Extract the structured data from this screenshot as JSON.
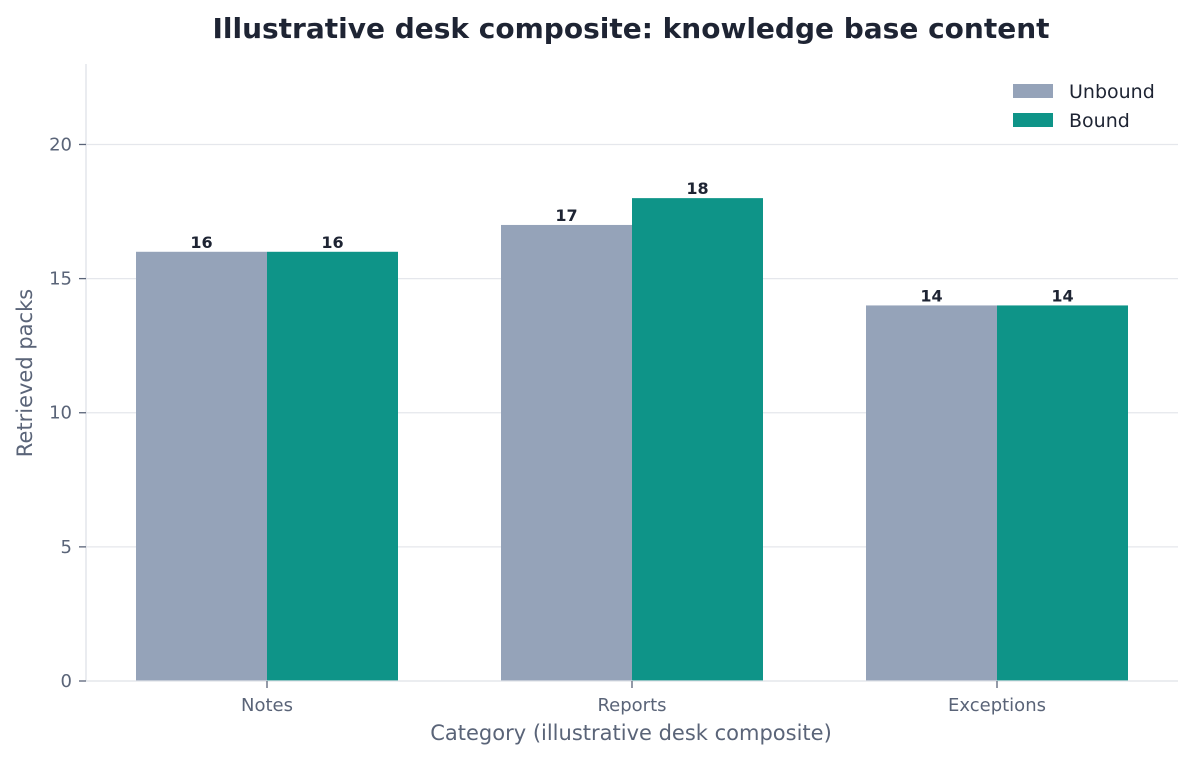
{
  "chart_data": {
    "type": "bar",
    "title": "Illustrative desk composite: knowledge base content",
    "xlabel": "Category (illustrative desk composite)",
    "ylabel": "Retrieved packs",
    "categories": [
      "Notes",
      "Reports",
      "Exceptions"
    ],
    "series": [
      {
        "name": "Unbound",
        "color": "#95a3b9",
        "values": [
          16,
          17,
          14
        ]
      },
      {
        "name": "Bound",
        "color": "#0e9488",
        "values": [
          16,
          18,
          14
        ]
      }
    ],
    "ylim": [
      0,
      23
    ],
    "yticks": [
      0,
      5,
      10,
      15,
      20
    ],
    "grid": true,
    "legend_position": "top-right",
    "data_labels": true
  }
}
